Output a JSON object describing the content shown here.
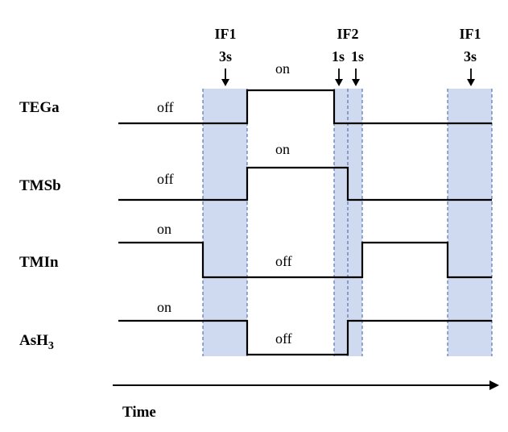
{
  "interfaces": [
    {
      "name": "IF1",
      "duration": "3s"
    },
    {
      "name": "IF2",
      "durations": [
        "1s",
        "1s"
      ]
    },
    {
      "name": "IF1",
      "duration": "3s"
    }
  ],
  "signals": [
    {
      "name": "TEGa",
      "states": [
        "off",
        "on"
      ]
    },
    {
      "name": "TMSb",
      "states": [
        "off",
        "on"
      ]
    },
    {
      "name": "TMIn",
      "states": [
        "on",
        "off"
      ]
    },
    {
      "name": "AsH",
      "subscript": "3",
      "states": [
        "on",
        "off"
      ]
    }
  ],
  "axis": {
    "label": "Time"
  },
  "colors": {
    "band": "#cfdaf0",
    "dash": "#3b5fa0",
    "line": "#000000"
  }
}
